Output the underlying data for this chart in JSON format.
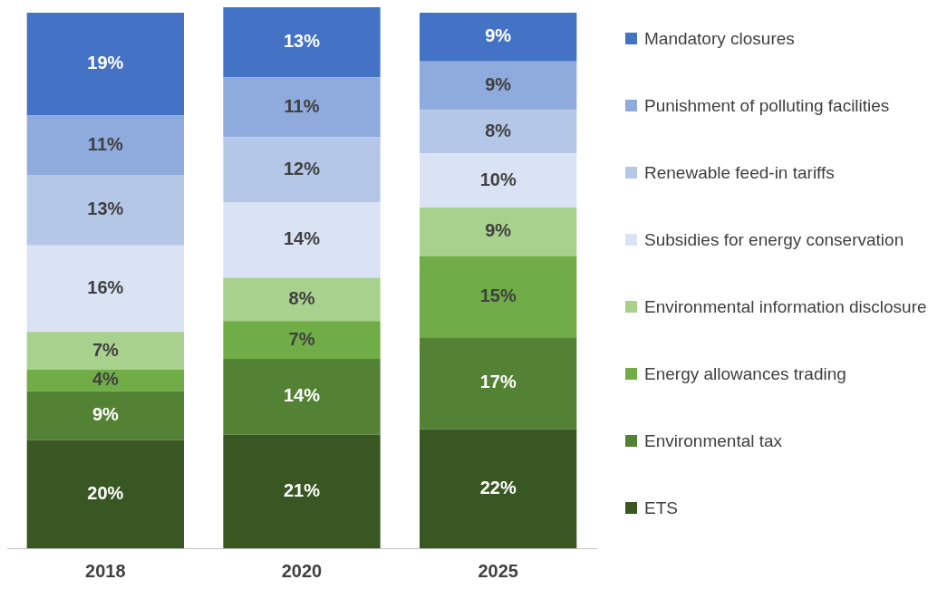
{
  "chart_data": {
    "type": "bar",
    "stacked": true,
    "categories": [
      "2018",
      "2020",
      "2025"
    ],
    "legend": "right",
    "grid": false,
    "tick_labels": "x",
    "series": [
      {
        "name": "ETS",
        "color": "#385723",
        "values": [
          20,
          21,
          22
        ],
        "value_labels": [
          "20%",
          "21%",
          "22%"
        ]
      },
      {
        "name": "Environmental tax",
        "color": "#548235",
        "values": [
          9,
          14,
          17
        ],
        "value_labels": [
          "9%",
          "14%",
          "17%"
        ]
      },
      {
        "name": "Energy allowances trading",
        "color": "#70ad47",
        "values": [
          4,
          7,
          15
        ],
        "value_labels": [
          "4%",
          "7%",
          "15%"
        ]
      },
      {
        "name": "Environmental information disclosure",
        "color": "#a9d18e",
        "values": [
          7,
          8,
          9
        ],
        "value_labels": [
          "7%",
          "8%",
          "9%"
        ]
      },
      {
        "name": "Subsidies for energy conservation",
        "color": "#dae3f3",
        "values": [
          16,
          14,
          10
        ],
        "value_labels": [
          "16%",
          "14%",
          "10%"
        ]
      },
      {
        "name": "Renewable feed-in tariffs",
        "color": "#b4c7e7",
        "values": [
          13,
          12,
          8
        ],
        "value_labels": [
          "13%",
          "12%",
          "8%"
        ]
      },
      {
        "name": "Punishment of polluting facilities",
        "color": "#8faadc",
        "values": [
          11,
          11,
          9
        ],
        "value_labels": [
          "11%",
          "11%",
          "9%"
        ]
      },
      {
        "name": "Mandatory closures",
        "color": "#4472c4",
        "values": [
          19,
          13,
          9
        ],
        "value_labels": [
          "19%",
          "13%",
          "9%"
        ]
      }
    ]
  }
}
